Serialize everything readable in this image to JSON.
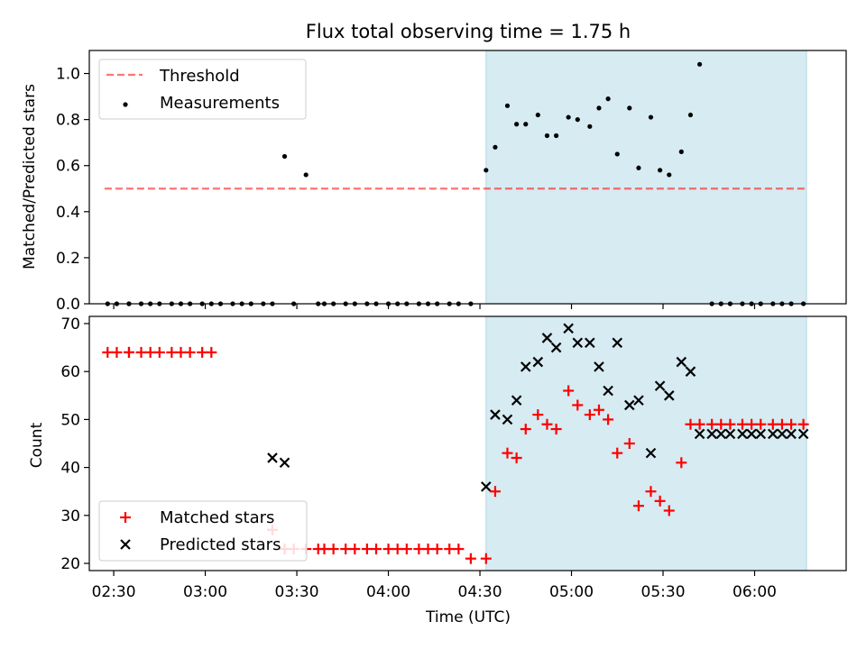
{
  "title": "Flux total observing time = 1.75 h",
  "colors": {
    "shade": "#add8e6",
    "threshold": "#ff0000",
    "matched": "#ff0000",
    "predicted": "#000000",
    "measurements": "#000000"
  },
  "chart_data": [
    {
      "type": "scatter",
      "ylabel": "Matched/Predicted stars",
      "xlabel": "",
      "ylim": [
        0,
        1.1
      ],
      "yticks": [
        0.0,
        0.2,
        0.4,
        0.6,
        0.8,
        1.0
      ],
      "ytick_labels": [
        "0.0",
        "0.2",
        "0.4",
        "0.6",
        "0.8",
        "1.0"
      ],
      "xlim": [
        "02:22",
        "06:30"
      ],
      "shaded_span": [
        "04:32",
        "06:17"
      ],
      "legend": {
        "position": "upper-left",
        "entries": [
          "Threshold",
          "Measurements"
        ]
      },
      "threshold": {
        "name": "Threshold",
        "value": 0.5,
        "x_range": [
          "02:27",
          "06:17"
        ],
        "style": "dashed"
      },
      "series": [
        {
          "name": "Measurements",
          "marker": "dot",
          "x": [
            "02:28",
            "02:31",
            "02:35",
            "02:35",
            "02:39",
            "02:42",
            "02:45",
            "02:49",
            "02:52",
            "02:55",
            "02:59",
            "03:02",
            "03:05",
            "03:09",
            "03:12",
            "03:15",
            "03:19",
            "03:22",
            "03:26",
            "03:29",
            "03:33",
            "03:37",
            "03:39",
            "03:42",
            "03:46",
            "03:49",
            "03:53",
            "03:56",
            "04:00",
            "04:03",
            "04:06",
            "04:10",
            "04:13",
            "04:16",
            "04:20",
            "04:23",
            "04:27",
            "04:32",
            "04:35",
            "04:39",
            "04:42",
            "04:45",
            "04:49",
            "04:52",
            "04:55",
            "04:59",
            "05:02",
            "05:06",
            "05:09",
            "05:12",
            "05:15",
            "05:19",
            "05:22",
            "05:26",
            "05:29",
            "05:32",
            "05:36",
            "05:39",
            "05:42",
            "05:46",
            "05:49",
            "05:52",
            "05:56",
            "05:59",
            "06:02",
            "06:06",
            "06:09",
            "06:12",
            "06:16"
          ],
          "y": [
            0,
            0,
            0,
            0,
            0,
            0,
            0,
            0,
            0,
            0,
            0,
            0,
            0,
            0,
            0,
            0,
            0,
            0,
            0.64,
            0,
            0.56,
            0,
            0,
            0,
            0,
            0,
            0,
            0,
            0,
            0,
            0,
            0,
            0,
            0,
            0,
            0,
            0,
            0.58,
            0.68,
            0.86,
            0.78,
            0.78,
            0.82,
            0.73,
            0.73,
            0.81,
            0.8,
            0.77,
            0.85,
            0.89,
            0.65,
            0.85,
            0.59,
            0.81,
            0.58,
            0.56,
            0.66,
            0.82,
            1.04,
            0,
            0,
            0,
            0,
            0,
            0,
            0,
            0,
            0,
            0
          ]
        }
      ]
    },
    {
      "type": "scatter",
      "ylabel": "Count",
      "xlabel": "Time (UTC)",
      "ylim": [
        18.5,
        71.5
      ],
      "yticks": [
        20,
        30,
        40,
        50,
        60,
        70
      ],
      "ytick_labels": [
        "20",
        "30",
        "40",
        "50",
        "60",
        "70"
      ],
      "xlim": [
        "02:22",
        "06:30"
      ],
      "xticks": [
        "02:30",
        "03:00",
        "03:30",
        "04:00",
        "04:30",
        "05:00",
        "05:30",
        "06:00"
      ],
      "xtick_labels": [
        "02:30",
        "03:00",
        "03:30",
        "04:00",
        "04:30",
        "05:00",
        "05:30",
        "06:00"
      ],
      "shaded_span": [
        "04:32",
        "06:17"
      ],
      "legend": {
        "position": "lower-left",
        "entries": [
          "Matched stars",
          "Predicted stars"
        ]
      },
      "series": [
        {
          "name": "Matched stars",
          "marker": "plus",
          "x": [
            "02:28",
            "02:31",
            "02:35",
            "02:35",
            "02:39",
            "02:42",
            "02:45",
            "02:49",
            "02:52",
            "02:55",
            "02:59",
            "03:02",
            "03:22",
            "03:26",
            "03:29",
            "03:33",
            "03:37",
            "03:39",
            "03:42",
            "03:46",
            "03:49",
            "03:53",
            "03:56",
            "04:00",
            "04:03",
            "04:06",
            "04:10",
            "04:13",
            "04:16",
            "04:20",
            "04:23",
            "04:27",
            "04:32",
            "04:35",
            "04:39",
            "04:42",
            "04:45",
            "04:49",
            "04:52",
            "04:55",
            "04:59",
            "05:02",
            "05:06",
            "05:09",
            "05:12",
            "05:15",
            "05:19",
            "05:22",
            "05:26",
            "05:29",
            "05:32",
            "05:36",
            "05:39",
            "05:42",
            "05:46",
            "05:49",
            "05:52",
            "05:56",
            "05:59",
            "06:02",
            "06:06",
            "06:09",
            "06:12",
            "06:16"
          ],
          "y": [
            64,
            64,
            64,
            64,
            64,
            64,
            64,
            64,
            64,
            64,
            64,
            64,
            27,
            23,
            23,
            23,
            23,
            23,
            23,
            23,
            23,
            23,
            23,
            23,
            23,
            23,
            23,
            23,
            23,
            23,
            23,
            21,
            21,
            35,
            43,
            42,
            48,
            51,
            49,
            48,
            56,
            53,
            51,
            52,
            50,
            43,
            45,
            32,
            35,
            33,
            31,
            41,
            49,
            49,
            49,
            49,
            49,
            49,
            49,
            49,
            49,
            49,
            49,
            49
          ]
        },
        {
          "name": "Predicted stars",
          "marker": "x",
          "x": [
            "03:22",
            "03:26",
            "04:32",
            "04:35",
            "04:39",
            "04:42",
            "04:45",
            "04:49",
            "04:52",
            "04:55",
            "04:59",
            "05:02",
            "05:06",
            "05:09",
            "05:12",
            "05:15",
            "05:19",
            "05:22",
            "05:26",
            "05:29",
            "05:32",
            "05:36",
            "05:39",
            "05:42",
            "05:46",
            "05:49",
            "05:52",
            "05:56",
            "05:59",
            "06:02",
            "06:06",
            "06:09",
            "06:12",
            "06:16"
          ],
          "y": [
            42,
            41,
            36,
            51,
            50,
            54,
            61,
            62,
            67,
            65,
            69,
            66,
            66,
            61,
            56,
            66,
            53,
            54,
            43,
            57,
            55,
            62,
            60,
            47,
            47,
            47,
            47,
            47,
            47,
            47,
            47,
            47,
            47,
            47
          ]
        }
      ]
    }
  ]
}
